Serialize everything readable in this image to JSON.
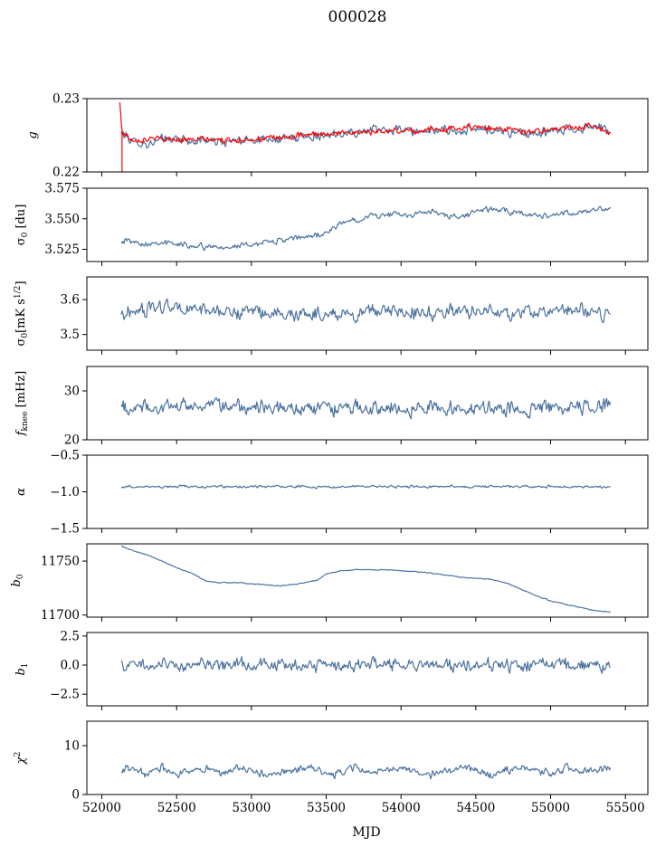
{
  "figure": {
    "title": "000028",
    "xlabel": "MJD",
    "x_ticks": [
      52000,
      52500,
      53000,
      53500,
      54000,
      54500,
      55000,
      55500
    ],
    "xlim": [
      51900,
      55650
    ]
  },
  "colors": {
    "series": "#4c72a0",
    "gain_overlay": "#ff0000"
  },
  "chart_data": [
    {
      "type": "line",
      "ylabel": "g",
      "ylim": [
        0.22,
        0.23
      ],
      "y_ticks": [
        "0.22",
        "0.23"
      ],
      "series": [
        {
          "color": "#4c72a0",
          "x": [
            52130,
            52200,
            52300,
            52400,
            52500,
            52600,
            52700,
            52800,
            52900,
            53000,
            53100,
            53200,
            53300,
            53400,
            53500,
            53600,
            53700,
            53800,
            53900,
            54000,
            54100,
            54200,
            54300,
            54400,
            54500,
            54600,
            54700,
            54800,
            54900,
            55000,
            55100,
            55200,
            55300,
            55400
          ],
          "y": [
            0.2253,
            0.2243,
            0.2238,
            0.2243,
            0.2246,
            0.2241,
            0.2244,
            0.224,
            0.2242,
            0.2244,
            0.2246,
            0.2245,
            0.2247,
            0.2249,
            0.2251,
            0.2253,
            0.2256,
            0.2255,
            0.2257,
            0.2258,
            0.2255,
            0.2256,
            0.2258,
            0.2254,
            0.2257,
            0.2259,
            0.2255,
            0.2253,
            0.2252,
            0.2255,
            0.2257,
            0.2259,
            0.2264,
            0.2253
          ],
          "noise": 0.0009
        },
        {
          "color": "#ff0000",
          "x": [
            52120,
            52135,
            52200,
            52300,
            52400,
            52500,
            52600,
            52700,
            52800,
            52900,
            53000,
            53100,
            53200,
            53300,
            53400,
            53500,
            53600,
            53700,
            53800,
            53900,
            54000,
            54100,
            54200,
            54300,
            54400,
            54500,
            54600,
            54700,
            54800,
            54900,
            55000,
            55100,
            55200,
            55300,
            55400
          ],
          "y": [
            0.2294,
            0.2255,
            0.2244,
            0.2245,
            0.2245,
            0.2245,
            0.2244,
            0.2244,
            0.2243,
            0.2244,
            0.2245,
            0.2246,
            0.2247,
            0.2248,
            0.225,
            0.2252,
            0.2254,
            0.2255,
            0.2255,
            0.2255,
            0.2256,
            0.2256,
            0.2257,
            0.2258,
            0.226,
            0.2262,
            0.2261,
            0.2258,
            0.2256,
            0.2256,
            0.2258,
            0.226,
            0.2262,
            0.2263,
            0.2252
          ],
          "noise": 0.0006
        }
      ]
    },
    {
      "type": "line",
      "ylabel": "σ0 [du]",
      "ylim": [
        3.515,
        3.575
      ],
      "y_ticks": [
        "3.525",
        "3.550",
        "3.575"
      ],
      "series": [
        {
          "color": "#4c72a0",
          "x": [
            52130,
            52200,
            52300,
            52400,
            52500,
            52600,
            52700,
            52800,
            52900,
            53000,
            53100,
            53200,
            53300,
            53400,
            53500,
            53600,
            53700,
            53800,
            53900,
            54000,
            54100,
            54200,
            54300,
            54400,
            54500,
            54600,
            54700,
            54800,
            54900,
            55000,
            55100,
            55200,
            55300,
            55400
          ],
          "y": [
            3.533,
            3.531,
            3.53,
            3.531,
            3.529,
            3.528,
            3.527,
            3.528,
            3.527,
            3.529,
            3.531,
            3.532,
            3.534,
            3.536,
            3.538,
            3.546,
            3.55,
            3.552,
            3.553,
            3.553,
            3.554,
            3.556,
            3.552,
            3.551,
            3.556,
            3.558,
            3.556,
            3.555,
            3.553,
            3.552,
            3.554,
            3.554,
            3.558,
            3.558
          ],
          "noise": 0.0035
        }
      ]
    },
    {
      "type": "line",
      "ylabel": "σ0[mK s^1/2]",
      "ylim": [
        3.455,
        3.665
      ],
      "y_ticks": [
        "3.5",
        "3.6"
      ],
      "series": [
        {
          "color": "#4c72a0",
          "x": [
            52130,
            52400,
            52700,
            53000,
            53300,
            53600,
            53900,
            54200,
            54500,
            54800,
            55100,
            55400
          ],
          "y": [
            3.56,
            3.58,
            3.57,
            3.56,
            3.56,
            3.56,
            3.57,
            3.56,
            3.57,
            3.56,
            3.57,
            3.56
          ],
          "noise": 0.028
        }
      ]
    },
    {
      "type": "line",
      "ylabel": "f_knee [mHz]",
      "ylim": [
        20,
        35
      ],
      "y_ticks": [
        "20",
        "30"
      ],
      "series": [
        {
          "color": "#4c72a0",
          "x": [
            52130,
            52400,
            52700,
            53000,
            53300,
            53600,
            53900,
            54200,
            54500,
            54800,
            55100,
            55400
          ],
          "y": [
            26.5,
            26.5,
            27,
            26.5,
            26.5,
            26.5,
            26.5,
            26.5,
            26.5,
            26.5,
            26.5,
            27
          ],
          "noise": 2.1
        }
      ]
    },
    {
      "type": "line",
      "ylabel": "α",
      "ylim": [
        -1.5,
        -0.5
      ],
      "y_ticks": [
        "−1.5",
        "−1.0",
        "−0.5"
      ],
      "series": [
        {
          "color": "#4c72a0",
          "x": [
            52130,
            55400
          ],
          "y": [
            -0.93,
            -0.93
          ],
          "noise": 0.025
        }
      ]
    },
    {
      "type": "line",
      "ylabel": "b0",
      "ylim": [
        11698,
        11766
      ],
      "y_ticks": [
        "11700",
        "11750"
      ],
      "series": [
        {
          "color": "#4c72a0",
          "x": [
            52130,
            52200,
            52300,
            52400,
            52500,
            52600,
            52700,
            52800,
            52900,
            53000,
            53100,
            53200,
            53300,
            53400,
            53450,
            53500,
            53600,
            53700,
            53800,
            53900,
            54000,
            54100,
            54200,
            54300,
            54400,
            54500,
            54600,
            54700,
            54800,
            54900,
            55000,
            55100,
            55200,
            55300,
            55400
          ],
          "y": [
            11764,
            11760,
            11756,
            11750,
            11744,
            11739,
            11731,
            11730,
            11730,
            11729,
            11728,
            11727,
            11729,
            11731,
            11733,
            11738,
            11741,
            11742,
            11742,
            11742,
            11741,
            11740,
            11739,
            11737,
            11735,
            11734,
            11733,
            11730,
            11724,
            11718,
            11713,
            11710,
            11707,
            11704,
            11703
          ],
          "noise": 0.6
        }
      ]
    },
    {
      "type": "line",
      "ylabel": "b1",
      "ylim": [
        -3.5,
        2.8
      ],
      "y_ticks": [
        "−2.5",
        "0.0",
        "2.5"
      ],
      "series": [
        {
          "color": "#4c72a0",
          "x": [
            52130,
            55400
          ],
          "y": [
            0.0,
            0.0
          ],
          "noise": 0.75
        }
      ]
    },
    {
      "type": "line",
      "ylabel": "χ2",
      "ylim": [
        0,
        15
      ],
      "y_ticks": [
        "0",
        "10"
      ],
      "series": [
        {
          "color": "#4c72a0",
          "x": [
            52130,
            52200,
            52300,
            52400,
            52500,
            52600,
            52700,
            52800,
            52900,
            53000,
            53100,
            53200,
            53300,
            53400,
            53500,
            53600,
            53700,
            53800,
            53900,
            54000,
            54100,
            54200,
            54300,
            54400,
            54500,
            54600,
            54700,
            54800,
            54900,
            55000,
            55100,
            55200,
            55300,
            55400
          ],
          "y": [
            4.8,
            5.5,
            4.0,
            5.5,
            4.0,
            5.0,
            5.5,
            4.0,
            5.5,
            5.0,
            4.0,
            4.5,
            5.0,
            5.5,
            4.0,
            4.5,
            5.5,
            4.5,
            5.0,
            5.5,
            4.5,
            4.0,
            5.0,
            5.5,
            5.0,
            4.0,
            5.0,
            5.5,
            5.0,
            4.0,
            5.5,
            5.0,
            5.0,
            5.5
          ],
          "noise": 1.1
        }
      ]
    }
  ]
}
